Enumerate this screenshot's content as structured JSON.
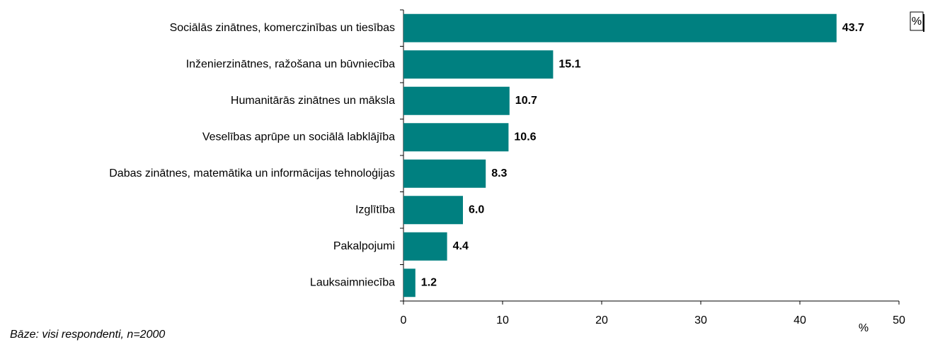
{
  "chart_data": {
    "type": "bar",
    "orientation": "horizontal",
    "categories": [
      "Sociālās zinātnes, komerczinības un tiesības",
      "Inženierzinātnes, ražošana un būvniecība",
      "Humanitārās zinātnes un māksla",
      "Veselības aprūpe un sociālā labklājība",
      "Dabas zinātnes, matemātika un informācijas tehnoloģijas",
      "Izglītība",
      "Pakalpojumi",
      "Lauksaimniecība"
    ],
    "values": [
      43.7,
      15.1,
      10.7,
      10.6,
      8.3,
      6.0,
      4.4,
      1.2
    ],
    "value_labels": [
      "43.7",
      "15.1",
      "10.7",
      "10.6",
      "8.3",
      "6.0",
      "4.4",
      "1.2"
    ],
    "color": "#008080",
    "xlim": [
      0,
      50
    ],
    "xticks": [
      0,
      10,
      20,
      30,
      40,
      50
    ],
    "x_label": "%",
    "unit_box": "%",
    "footnote": "Bāze: visi respondenti, n=2000"
  }
}
